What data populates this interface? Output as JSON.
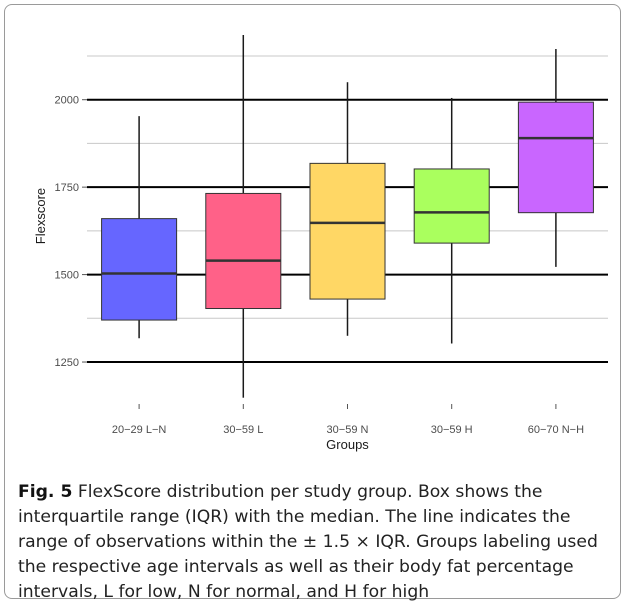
{
  "chart_data": {
    "type": "box",
    "xlabel": "Groups",
    "ylabel": "Flexscore",
    "ylim": [
      1130,
      2205
    ],
    "yticks": [
      1250,
      1500,
      1750,
      2000
    ],
    "minor_yticks": [
      1375,
      1625,
      1875,
      2125
    ],
    "categories": [
      "20−29 L−N",
      "30−59 L",
      "30−59 N",
      "30−59 H",
      "60−70 N−H"
    ],
    "boxes": [
      {
        "whisker_low": 1318,
        "q1": 1370,
        "median": 1503,
        "q3": 1660,
        "whisker_high": 1953
      },
      {
        "whisker_low": 1148,
        "q1": 1403,
        "median": 1540,
        "q3": 1732,
        "whisker_high": 2185
      },
      {
        "whisker_low": 1325,
        "q1": 1430,
        "median": 1648,
        "q3": 1818,
        "whisker_high": 2050
      },
      {
        "whisker_low": 1303,
        "q1": 1590,
        "median": 1678,
        "q3": 1802,
        "whisker_high": 2005
      },
      {
        "whisker_low": 1522,
        "q1": 1677,
        "median": 1890,
        "q3": 1993,
        "whisker_high": 2145
      }
    ],
    "colors": [
      "#6666ff",
      "#ff6188",
      "#ffd765",
      "#aaff5e",
      "#c966ff"
    ],
    "grid": true,
    "legend": "none"
  },
  "caption": {
    "label": "Fig. 5",
    "text": " FlexScore distribution per study group. Box shows the interquartile range (IQR) with the median. The line indicates the range of observations within the ± 1.5 × IQR. Groups labeling used the respective age intervals as well as their body fat percentage intervals, L for low, N for normal, and H for high"
  }
}
